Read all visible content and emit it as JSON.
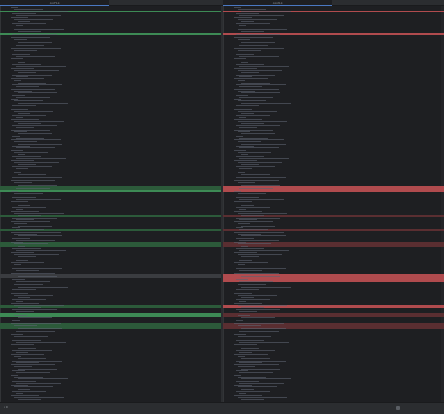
{
  "tabs": [
    {
      "label": "config"
    },
    {
      "label": "config"
    }
  ],
  "left_pane": {
    "title": "config"
  },
  "right_pane": {
    "title": "config"
  },
  "status": {
    "left_text": "1 0",
    "right_text_1": "",
    "right_text_2": ""
  },
  "colors": {
    "added": "#2c5a3a",
    "added_strong": "#3d8a55",
    "deleted": "#5a2e31",
    "deleted_strong": "#b04b4e",
    "changed": "#3a3c40"
  }
}
